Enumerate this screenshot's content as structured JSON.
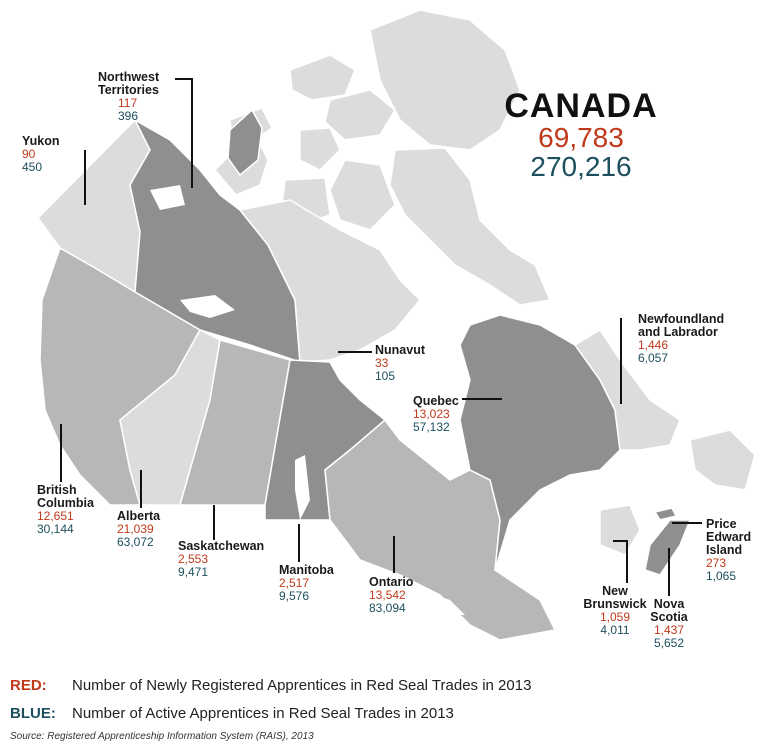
{
  "country": {
    "name": "CANADA",
    "new_apprentices": "69,783",
    "active_apprentices": "270,216"
  },
  "colors": {
    "red": "#c0391b",
    "blue": "#1d4f5e",
    "light": "#dcdcdc",
    "mid": "#b7b7b7",
    "dark": "#8f8f8f"
  },
  "regions": [
    {
      "id": "yukon",
      "name": "Yukon",
      "red": "90",
      "blue": "450"
    },
    {
      "id": "nwt",
      "name": "Northwest Territories",
      "red": "117",
      "blue": "396"
    },
    {
      "id": "nunavut",
      "name": "Nunavut",
      "red": "33",
      "blue": "105"
    },
    {
      "id": "bc",
      "name": "British Columbia",
      "red": "12,651",
      "blue": "30,144"
    },
    {
      "id": "alberta",
      "name": "Alberta",
      "red": "21,039",
      "blue": "63,072"
    },
    {
      "id": "sask",
      "name": "Saskatchewan",
      "red": "2,553",
      "blue": "9,471"
    },
    {
      "id": "manitoba",
      "name": "Manitoba",
      "red": "2,517",
      "blue": "9,576"
    },
    {
      "id": "ontario",
      "name": "Ontario",
      "red": "13,542",
      "blue": "83,094"
    },
    {
      "id": "quebec",
      "name": "Quebec",
      "red": "13,023",
      "blue": "57,132"
    },
    {
      "id": "nl",
      "name": "Newfoundland and Labrador",
      "red": "1,446",
      "blue": "6,057"
    },
    {
      "id": "nb",
      "name": "New Brunswick",
      "red": "1,059",
      "blue": "4,011"
    },
    {
      "id": "ns",
      "name": "Nova Scotia",
      "red": "1,437",
      "blue": "5,652"
    },
    {
      "id": "pei",
      "name": "Price Edward Island",
      "red": "273",
      "blue": "1,065"
    }
  ],
  "legend": {
    "red_key": "RED:",
    "red_text": "Number of Newly Registered Apprentices in Red Seal Trades in 2013",
    "blue_key": "BLUE:",
    "blue_text": "Number of Active Apprentices in Red Seal Trades in 2013"
  },
  "source": "Source: Registered Apprenticeship Information System (RAIS), 2013"
}
